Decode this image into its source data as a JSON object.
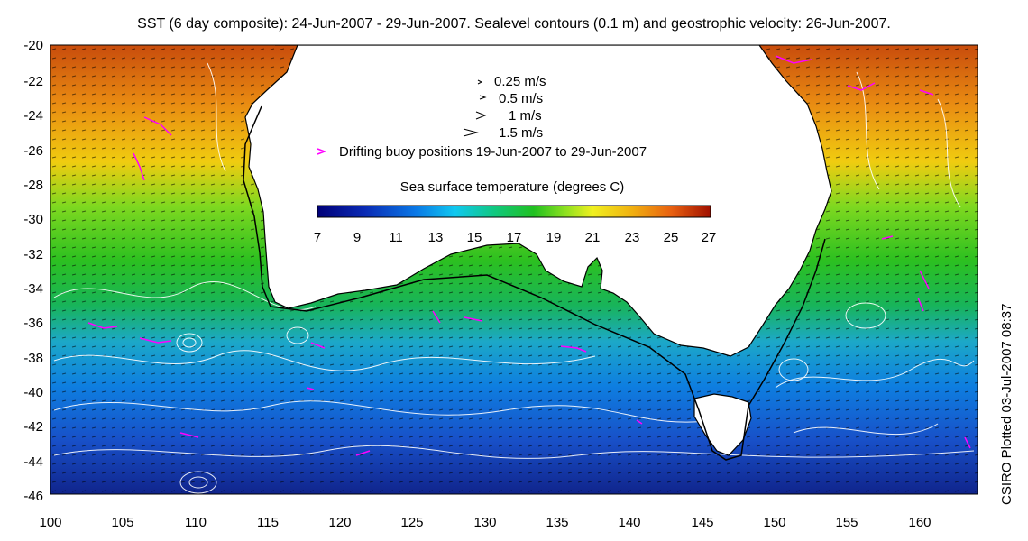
{
  "title": "SST (6 day composite): 24-Jun-2007 - 29-Jun-2007. Sealevel contours (0.1 m) and geostrophic velocity: 26-Jun-2007.",
  "credit": "CSIRO Plotted 03-Jul-2007 08:37",
  "axes": {
    "y_ticks": [
      "-20",
      "-22",
      "-24",
      "-26",
      "-28",
      "-30",
      "-32",
      "-34",
      "-36",
      "-38",
      "-40",
      "-42",
      "-44",
      "-46"
    ],
    "x_ticks": [
      "100",
      "105",
      "110",
      "115",
      "120",
      "125",
      "130",
      "135",
      "140",
      "145",
      "150",
      "155",
      "160"
    ],
    "lon_range": [
      100,
      164
    ],
    "lat_range": [
      -46,
      -20
    ]
  },
  "legend": {
    "vectors": [
      {
        "label": "0.25 m/s"
      },
      {
        "label": "0.5 m/s"
      },
      {
        "label": "1 m/s"
      },
      {
        "label": "1.5 m/s"
      }
    ],
    "buoys": "Drifting buoy positions 19-Jun-2007 to 29-Jun-2007",
    "buoy_color": "#ff00ff"
  },
  "colorbar": {
    "title": "Sea surface temperature (degrees C)",
    "ticks": [
      "7",
      "9",
      "11",
      "13",
      "15",
      "17",
      "19",
      "21",
      "23",
      "25",
      "27"
    ],
    "range": [
      7,
      27
    ]
  },
  "colors": {
    "land": "#ffffff",
    "contours": "#ffffff",
    "vectors": "#000000",
    "coastline": "#000000"
  }
}
